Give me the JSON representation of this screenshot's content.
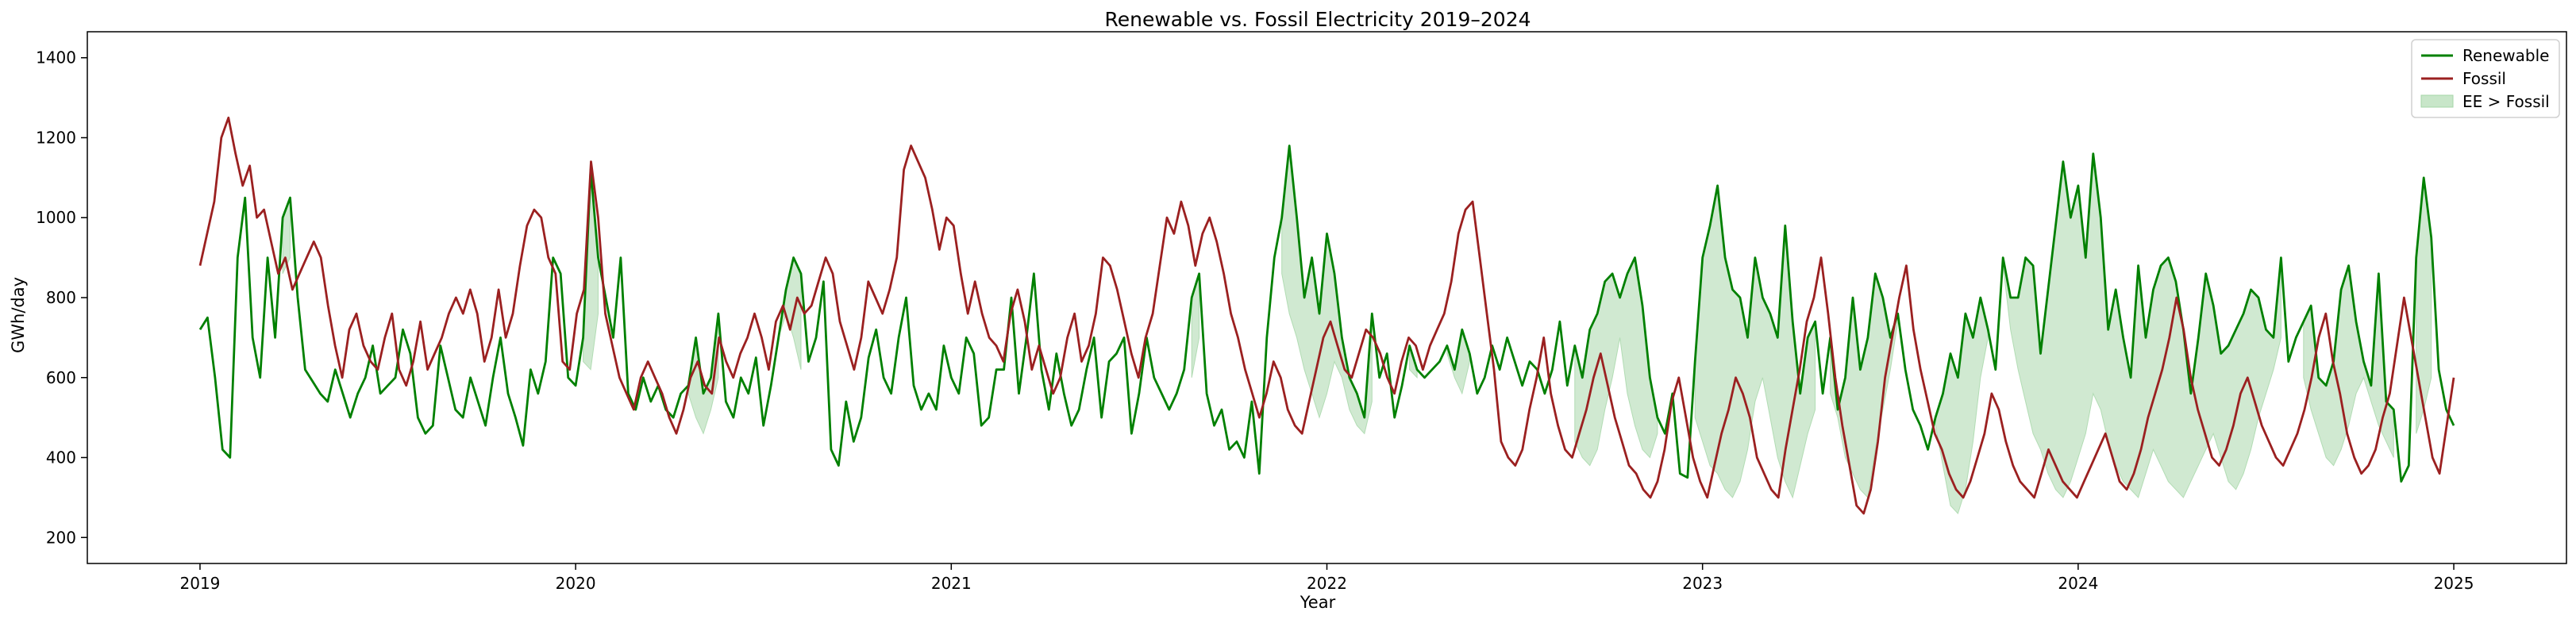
{
  "chart_data": {
    "type": "line",
    "title": "Renewable vs. Fossil Electricity 2019–2024",
    "xlabel": "Year",
    "ylabel": "GWh/day",
    "xlim": [
      2018.7,
      2025.3
    ],
    "ylim": [
      135,
      1465
    ],
    "x_ticks": [
      2019,
      2020,
      2021,
      2022,
      2023,
      2024,
      2025
    ],
    "x_tick_labels": [
      "2019",
      "2020",
      "2021",
      "2022",
      "2023",
      "2024",
      "2025"
    ],
    "y_ticks": [
      200,
      400,
      600,
      800,
      1000,
      1200,
      1400
    ],
    "y_tick_labels": [
      "200",
      "400",
      "600",
      "800",
      "1000",
      "1200",
      "1400"
    ],
    "grid": false,
    "legend_position": "top-right",
    "x_date_range": [
      "2019-01-01",
      "2024-12-31"
    ],
    "series": [
      {
        "name": "Renewable",
        "color": "#008000",
        "values": [
          720,
          750,
          600,
          420,
          400,
          900,
          1050,
          700,
          600,
          900,
          700,
          1000,
          1050,
          800,
          620,
          590,
          560,
          540,
          620,
          560,
          500,
          560,
          600,
          680,
          560,
          580,
          600,
          720,
          660,
          500,
          460,
          480,
          680,
          600,
          520,
          500,
          600,
          540,
          480,
          600,
          700,
          560,
          500,
          430,
          620,
          560,
          640,
          900,
          860,
          600,
          580,
          700,
          1120,
          900,
          800,
          700,
          900,
          560,
          520,
          600,
          540,
          580,
          520,
          500,
          560,
          580,
          700,
          560,
          600,
          760,
          540,
          500,
          600,
          560,
          650,
          480,
          580,
          700,
          820,
          900,
          860,
          640,
          700,
          840,
          420,
          380,
          540,
          440,
          500,
          650,
          720,
          600,
          560,
          700,
          800,
          580,
          520,
          560,
          520,
          680,
          600,
          560,
          700,
          660,
          480,
          500,
          620,
          620,
          800,
          560,
          700,
          860,
          620,
          520,
          660,
          560,
          480,
          520,
          620,
          700,
          500,
          640,
          660,
          700,
          460,
          560,
          700,
          600,
          560,
          520,
          560,
          620,
          800,
          860,
          560,
          480,
          520,
          420,
          440,
          400,
          540,
          360,
          700,
          900,
          1000,
          1180,
          1000,
          800,
          900,
          760,
          960,
          860,
          700,
          600,
          560,
          500,
          760,
          600,
          660,
          500,
          580,
          680,
          620,
          600,
          620,
          640,
          680,
          620,
          720,
          660,
          560,
          600,
          680,
          620,
          700,
          640,
          580,
          640,
          620,
          560,
          620,
          740,
          580,
          680,
          600,
          720,
          760,
          840,
          860,
          800,
          860,
          900,
          780,
          600,
          500,
          460,
          560,
          360,
          350,
          640,
          900,
          980,
          1080,
          900,
          820,
          800,
          700,
          900,
          800,
          760,
          700,
          980,
          740,
          560,
          700,
          740,
          560,
          700,
          520,
          600,
          800,
          620,
          700,
          860,
          800,
          700,
          760,
          620,
          520,
          480,
          420,
          500,
          560,
          660,
          600,
          760,
          700,
          800,
          720,
          620,
          900,
          800,
          800,
          900,
          880,
          660,
          820,
          980,
          1140,
          1000,
          1080,
          900,
          1160,
          1000,
          720,
          820,
          700,
          600,
          880,
          700,
          820,
          880,
          900,
          840,
          720,
          560,
          700,
          860,
          780,
          660,
          680,
          720,
          760,
          820,
          800,
          720,
          700,
          900,
          640,
          700,
          740,
          780,
          600,
          580,
          640,
          820,
          880,
          740,
          640,
          580,
          860,
          540,
          520,
          340,
          380,
          900,
          1100,
          950,
          620,
          520,
          480
        ]
      },
      {
        "name": "Fossil",
        "color": "#9b2020",
        "values": [
          880,
          960,
          1040,
          1200,
          1250,
          1160,
          1080,
          1130,
          1000,
          1020,
          940,
          860,
          900,
          820,
          860,
          900,
          940,
          900,
          780,
          680,
          600,
          720,
          760,
          680,
          640,
          620,
          700,
          760,
          620,
          580,
          640,
          740,
          620,
          660,
          700,
          760,
          800,
          760,
          820,
          760,
          640,
          700,
          820,
          700,
          760,
          880,
          980,
          1020,
          1000,
          900,
          860,
          640,
          620,
          760,
          820,
          1140,
          1000,
          760,
          680,
          600,
          560,
          520,
          600,
          640,
          600,
          560,
          500,
          460,
          520,
          600,
          640,
          580,
          560,
          700,
          640,
          600,
          660,
          700,
          760,
          700,
          620,
          740,
          780,
          720,
          800,
          760,
          780,
          840,
          900,
          860,
          740,
          680,
          620,
          700,
          840,
          800,
          760,
          820,
          900,
          1120,
          1180,
          1140,
          1100,
          1020,
          920,
          1000,
          980,
          860,
          760,
          840,
          760,
          700,
          680,
          640,
          760,
          820,
          740,
          620,
          680,
          620,
          560,
          600,
          700,
          760,
          640,
          680,
          760,
          900,
          880,
          820,
          740,
          660,
          600,
          700,
          760,
          880,
          1000,
          960,
          1040,
          980,
          880,
          960,
          1000,
          940,
          860,
          760,
          700,
          620,
          560,
          500,
          560,
          640,
          600,
          520,
          480,
          460,
          540,
          620,
          700,
          740,
          680,
          620,
          600,
          660,
          720,
          700,
          660,
          600,
          560,
          640,
          700,
          680,
          620,
          680,
          720,
          760,
          840,
          960,
          1020,
          1040,
          900,
          760,
          620,
          440,
          400,
          380,
          420,
          520,
          600,
          700,
          560,
          480,
          420,
          400,
          460,
          520,
          600,
          660,
          580,
          500,
          440,
          380,
          360,
          320,
          300,
          340,
          420,
          540,
          600,
          500,
          400,
          340,
          300,
          380,
          460,
          520,
          600,
          560,
          500,
          400,
          360,
          320,
          300,
          420,
          520,
          620,
          740,
          800,
          900,
          760,
          600,
          480,
          380,
          280,
          260,
          320,
          440,
          600,
          700,
          800,
          880,
          720,
          620,
          540,
          460,
          420,
          360,
          320,
          300,
          340,
          400,
          460,
          560,
          520,
          440,
          380,
          340,
          320,
          300,
          360,
          420,
          380,
          340,
          320,
          300,
          340,
          380,
          420,
          460,
          400,
          340,
          320,
          360,
          420,
          500,
          560,
          620,
          700,
          800,
          720,
          600,
          520,
          460,
          400,
          380,
          420,
          480,
          560,
          600,
          540,
          480,
          440,
          400,
          380,
          420,
          460,
          520,
          600,
          700,
          760,
          640,
          560,
          460,
          400,
          360,
          380,
          420,
          500,
          560,
          680,
          800,
          700,
          600,
          500,
          400,
          360,
          480,
          600
        ]
      }
    ],
    "fill_legend": {
      "name": "EE > Fossil",
      "color": "#c8e6c9"
    },
    "legend_entries": [
      "Renewable",
      "Fossil",
      "EE > Fossil"
    ]
  }
}
